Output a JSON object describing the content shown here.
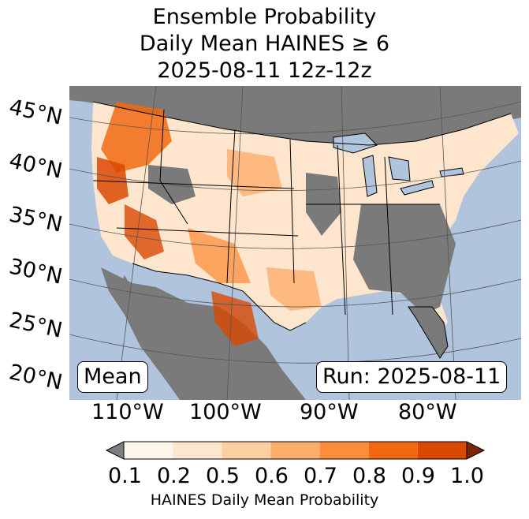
{
  "title": {
    "line1": "Ensemble Probability",
    "line2": "Daily Mean HAINES ≥ 6",
    "line3": "2025-08-11 12z-12z"
  },
  "map": {
    "lat_labels": [
      "45°N",
      "40°N",
      "35°N",
      "30°N",
      "25°N",
      "20°N"
    ],
    "lon_labels": [
      "110°W",
      "100°W",
      "90°W",
      "80°W"
    ],
    "stat_label": "Mean",
    "run_label": "Run: 2025-08-11",
    "colors": {
      "ocean": "#b0c4de",
      "land_masked": "#7a7a7a",
      "lakes": "#b0c4de"
    }
  },
  "colorbar": {
    "label": "HAINES Daily Mean Probability",
    "ticks": [
      "0.1",
      "0.2",
      "0.5",
      "0.6",
      "0.7",
      "0.8",
      "0.9",
      "1.0"
    ],
    "under_color": "#7f7f7f",
    "over_color": "#7f2704",
    "colors": [
      "#fff5eb",
      "#fee6ce",
      "#fdd0a2",
      "#fdae6b",
      "#fd8d3c",
      "#f16913",
      "#d94801"
    ]
  }
}
